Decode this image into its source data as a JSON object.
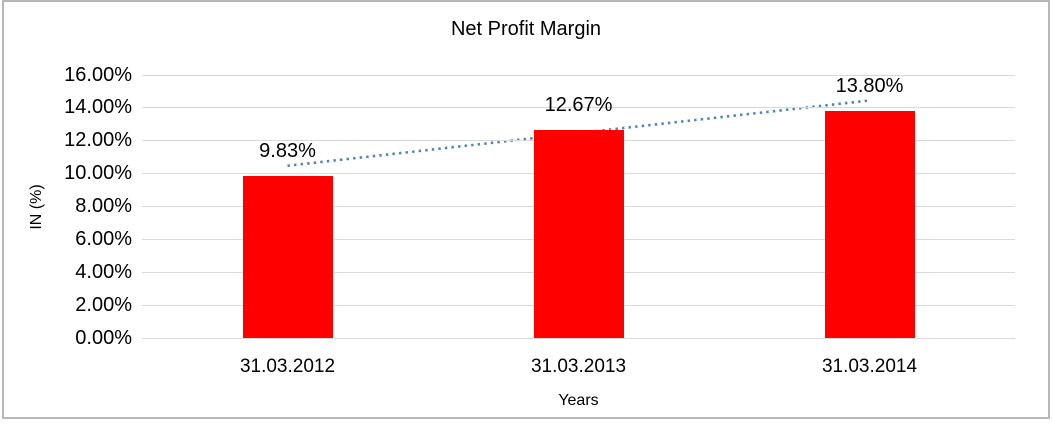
{
  "frame": {
    "border_color": "#b7b7b7",
    "background_color": "#ffffff"
  },
  "chart_data": {
    "type": "bar",
    "title": "Net Profit Margin",
    "xlabel": "Years",
    "ylabel": "IN (%)",
    "categories": [
      "31.03.2012",
      "31.03.2013",
      "31.03.2014"
    ],
    "series": [
      {
        "name": "Net Profit Margin",
        "values": [
          9.83,
          12.67,
          13.8
        ]
      }
    ],
    "data_labels": [
      "9.83%",
      "12.67%",
      "13.80%"
    ],
    "ylim": [
      0,
      16
    ],
    "ytick_step": 2,
    "ytick_labels": [
      "0.00%",
      "2.00%",
      "4.00%",
      "6.00%",
      "8.00%",
      "10.00%",
      "12.00%",
      "14.00%",
      "16.00%"
    ],
    "grid": true,
    "legend_position": "none",
    "bar_color": "#ff0000",
    "gridline_color": "#d9d9d9",
    "text_color": "#000000",
    "trendline": {
      "type": "linear",
      "line_style": "dotted",
      "color": "#4f81bd"
    }
  }
}
